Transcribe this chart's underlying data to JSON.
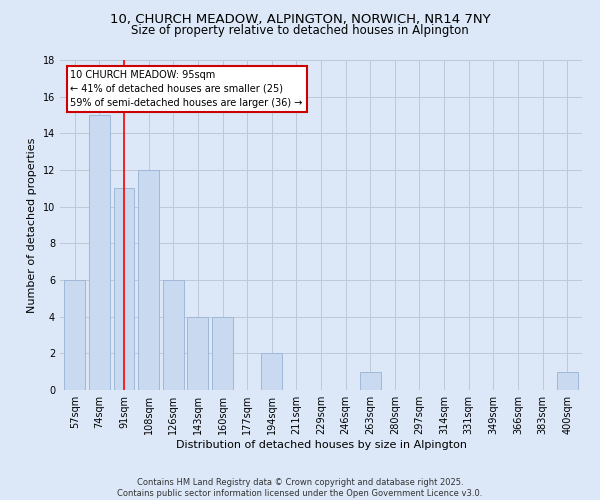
{
  "title": "10, CHURCH MEADOW, ALPINGTON, NORWICH, NR14 7NY",
  "subtitle": "Size of property relative to detached houses in Alpington",
  "xlabel": "Distribution of detached houses by size in Alpington",
  "ylabel": "Number of detached properties",
  "categories": [
    "57sqm",
    "74sqm",
    "91sqm",
    "108sqm",
    "126sqm",
    "143sqm",
    "160sqm",
    "177sqm",
    "194sqm",
    "211sqm",
    "229sqm",
    "246sqm",
    "263sqm",
    "280sqm",
    "297sqm",
    "314sqm",
    "331sqm",
    "349sqm",
    "366sqm",
    "383sqm",
    "400sqm"
  ],
  "values": [
    6,
    15,
    11,
    12,
    6,
    4,
    4,
    0,
    2,
    0,
    0,
    0,
    1,
    0,
    0,
    0,
    0,
    0,
    0,
    0,
    1
  ],
  "bar_color": "#c9daf0",
  "bar_edge_color": "#a0b8d8",
  "red_line_x": 2,
  "annotation_text": "10 CHURCH MEADOW: 95sqm\n← 41% of detached houses are smaller (25)\n59% of semi-detached houses are larger (36) →",
  "annotation_box_color": "#ffffff",
  "annotation_box_edge": "#cc0000",
  "ylim": [
    0,
    18
  ],
  "yticks": [
    0,
    2,
    4,
    6,
    8,
    10,
    12,
    14,
    16,
    18
  ],
  "grid_color": "#c0c8d8",
  "background_color": "#dce8f8",
  "footnote": "Contains HM Land Registry data © Crown copyright and database right 2025.\nContains public sector information licensed under the Open Government Licence v3.0.",
  "title_fontsize": 9.5,
  "subtitle_fontsize": 8.5,
  "xlabel_fontsize": 8,
  "ylabel_fontsize": 8,
  "tick_fontsize": 7,
  "annotation_fontsize": 7,
  "footnote_fontsize": 6
}
